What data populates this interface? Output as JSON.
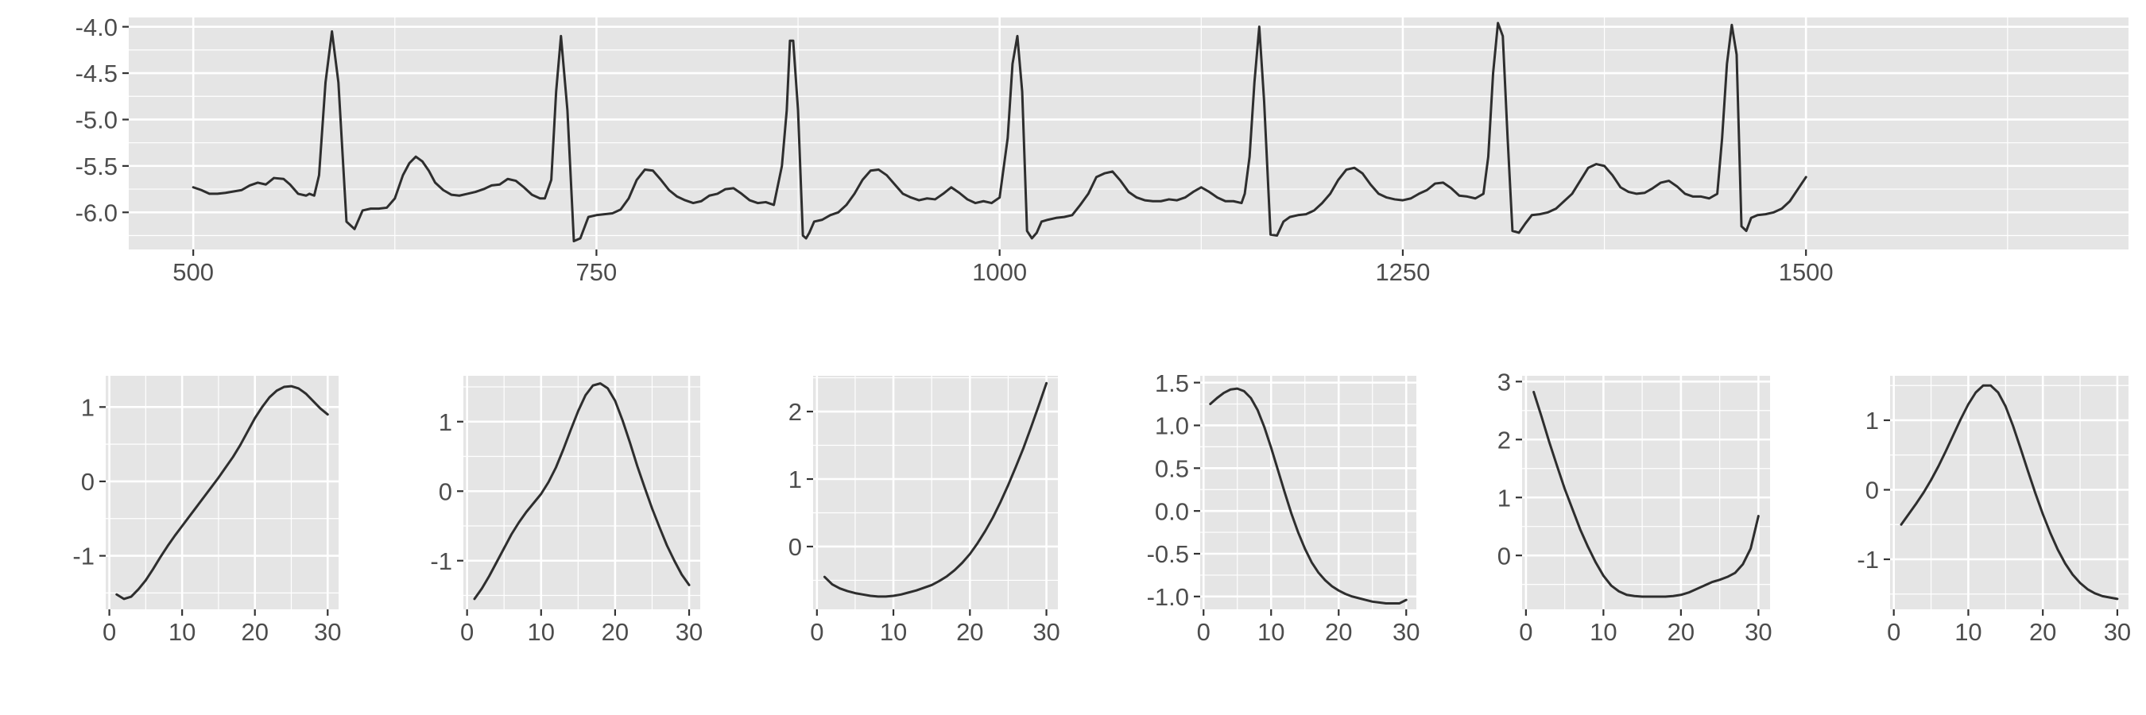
{
  "chart_data": [
    {
      "type": "line",
      "title": "",
      "xlabel": "",
      "ylabel": "",
      "xlim": [
        460,
        1700
      ],
      "ylim": [
        -6.4,
        -3.9
      ],
      "x_ticks": [
        500,
        750,
        1000,
        1250,
        1500
      ],
      "y_ticks": [
        -6.0,
        -5.5,
        -5.0,
        -4.5,
        -4.0
      ],
      "x_tick_labels": [
        "500",
        "750",
        "1000",
        "1250",
        "1500"
      ],
      "y_tick_labels": [
        "-6.0",
        "-5.5",
        "-5.0",
        "-4.5",
        "-4.0"
      ],
      "grid": true,
      "series": [
        {
          "x": [
            500,
            505,
            510,
            515,
            520,
            530,
            535,
            540,
            545,
            550,
            556,
            560,
            565,
            570,
            572,
            575,
            578,
            582,
            586,
            590,
            595,
            600,
            605,
            610,
            615,
            620,
            625,
            630,
            634,
            638,
            642,
            646,
            650,
            655,
            660,
            665,
            670,
            675,
            680,
            685,
            690,
            695,
            700,
            705,
            710,
            715,
            718,
            722,
            725,
            728,
            732,
            736,
            740,
            745,
            750,
            755,
            760,
            765,
            770,
            775,
            780,
            785,
            790,
            795,
            800,
            805,
            810,
            815,
            820,
            825,
            830,
            835,
            840,
            845,
            850,
            855,
            860,
            865,
            868,
            870,
            872,
            875,
            878,
            880,
            882,
            885,
            890,
            895,
            900,
            905,
            910,
            915,
            920,
            925,
            930,
            935,
            940,
            945,
            950,
            955,
            960,
            965,
            970,
            975,
            980,
            985,
            990,
            995,
            1000,
            1005,
            1008,
            1011,
            1014,
            1017,
            1020,
            1023,
            1026,
            1030,
            1035,
            1040,
            1045,
            1050,
            1055,
            1060,
            1065,
            1070,
            1075,
            1080,
            1085,
            1090,
            1095,
            1100,
            1105,
            1110,
            1115,
            1120,
            1125,
            1130,
            1135,
            1140,
            1145,
            1150,
            1152,
            1155,
            1158,
            1161,
            1164,
            1168,
            1172,
            1176,
            1180,
            1185,
            1190,
            1195,
            1200,
            1205,
            1210,
            1215,
            1220,
            1225,
            1230,
            1235,
            1240,
            1245,
            1250,
            1255,
            1260,
            1265,
            1270,
            1275,
            1280,
            1285,
            1290,
            1295,
            1300,
            1303,
            1306,
            1309,
            1312,
            1315,
            1318,
            1322,
            1326,
            1330,
            1335,
            1340,
            1345,
            1350,
            1355,
            1360,
            1365,
            1370,
            1375,
            1380,
            1385,
            1390,
            1395,
            1400,
            1405,
            1410,
            1415,
            1420,
            1425,
            1430,
            1435,
            1440,
            1445,
            1448,
            1451,
            1454,
            1457,
            1460,
            1463,
            1466,
            1470,
            1475,
            1480,
            1485,
            1490,
            1495,
            1500
          ],
          "y": [
            -5.73,
            -5.76,
            -5.8,
            -5.8,
            -5.79,
            -5.76,
            -5.71,
            -5.68,
            -5.7,
            -5.63,
            -5.64,
            -5.7,
            -5.8,
            -5.82,
            -5.8,
            -5.82,
            -5.6,
            -4.6,
            -4.05,
            -4.6,
            -6.1,
            -6.18,
            -5.98,
            -5.96,
            -5.96,
            -5.95,
            -5.85,
            -5.6,
            -5.47,
            -5.4,
            -5.45,
            -5.55,
            -5.68,
            -5.76,
            -5.81,
            -5.82,
            -5.8,
            -5.78,
            -5.75,
            -5.71,
            -5.7,
            -5.64,
            -5.66,
            -5.73,
            -5.81,
            -5.85,
            -5.85,
            -5.65,
            -4.7,
            -4.1,
            -4.9,
            -6.31,
            -6.28,
            -6.05,
            -6.03,
            -6.02,
            -6.01,
            -5.97,
            -5.85,
            -5.65,
            -5.54,
            -5.55,
            -5.65,
            -5.76,
            -5.83,
            -5.87,
            -5.9,
            -5.88,
            -5.82,
            -5.8,
            -5.75,
            -5.74,
            -5.8,
            -5.87,
            -5.9,
            -5.89,
            -5.92,
            -5.5,
            -4.9,
            -4.15,
            -4.15,
            -4.9,
            -6.25,
            -6.28,
            -6.22,
            -6.1,
            -6.08,
            -6.03,
            -6.0,
            -5.92,
            -5.8,
            -5.65,
            -5.55,
            -5.54,
            -5.6,
            -5.7,
            -5.8,
            -5.84,
            -5.87,
            -5.85,
            -5.86,
            -5.8,
            -5.73,
            -5.79,
            -5.86,
            -5.9,
            -5.88,
            -5.9,
            -5.84,
            -5.2,
            -4.4,
            -4.1,
            -4.7,
            -6.2,
            -6.28,
            -6.22,
            -6.1,
            -6.08,
            -6.06,
            -6.05,
            -6.03,
            -5.92,
            -5.8,
            -5.62,
            -5.58,
            -5.56,
            -5.66,
            -5.78,
            -5.84,
            -5.87,
            -5.88,
            -5.88,
            -5.86,
            -5.87,
            -5.84,
            -5.78,
            -5.73,
            -5.78,
            -5.84,
            -5.88,
            -5.88,
            -5.9,
            -5.8,
            -5.4,
            -4.6,
            -4.0,
            -4.8,
            -6.24,
            -6.25,
            -6.1,
            -6.05,
            -6.03,
            -6.02,
            -5.98,
            -5.9,
            -5.8,
            -5.65,
            -5.54,
            -5.52,
            -5.58,
            -5.7,
            -5.8,
            -5.84,
            -5.86,
            -5.87,
            -5.85,
            -5.8,
            -5.76,
            -5.69,
            -5.68,
            -5.74,
            -5.82,
            -5.83,
            -5.85,
            -5.8,
            -5.4,
            -4.5,
            -3.96,
            -4.1,
            -5.2,
            -6.2,
            -6.22,
            -6.12,
            -6.03,
            -6.02,
            -6.0,
            -5.96,
            -5.88,
            -5.8,
            -5.66,
            -5.52,
            -5.48,
            -5.5,
            -5.6,
            -5.73,
            -5.78,
            -5.8,
            -5.79,
            -5.74,
            -5.68,
            -5.66,
            -5.72,
            -5.8,
            -5.83,
            -5.83,
            -5.85,
            -5.8,
            -5.2,
            -4.4,
            -3.98,
            -4.3,
            -6.15,
            -6.2,
            -6.06,
            -6.03,
            -6.02,
            -6.0,
            -5.96,
            -5.88,
            -5.75,
            -5.62
          ]
        }
      ]
    },
    {
      "type": "line",
      "title": "",
      "xlabel": "",
      "ylabel": "",
      "xlim": [
        -0.5,
        31.5
      ],
      "ylim": [
        -1.72,
        1.42
      ],
      "x_ticks": [
        0,
        10,
        20,
        30
      ],
      "x_tick_labels": [
        "0",
        "10",
        "20",
        "30"
      ],
      "y_ticks": [
        -1,
        0,
        1
      ],
      "y_tick_labels": [
        "-1",
        "0",
        "1"
      ],
      "grid": true,
      "series": [
        {
          "x": [
            1,
            2,
            3,
            4,
            5,
            6,
            7,
            8,
            9,
            10,
            11,
            12,
            13,
            14,
            15,
            16,
            17,
            18,
            19,
            20,
            21,
            22,
            23,
            24,
            25,
            26,
            27,
            28,
            29,
            30
          ],
          "y": [
            -1.52,
            -1.58,
            -1.55,
            -1.45,
            -1.33,
            -1.18,
            -1.02,
            -0.87,
            -0.73,
            -0.6,
            -0.47,
            -0.34,
            -0.21,
            -0.08,
            0.05,
            0.19,
            0.33,
            0.49,
            0.67,
            0.85,
            1.0,
            1.13,
            1.22,
            1.27,
            1.28,
            1.25,
            1.18,
            1.08,
            0.98,
            0.9
          ]
        }
      ]
    },
    {
      "type": "line",
      "title": "",
      "xlabel": "",
      "ylabel": "",
      "xlim": [
        -0.5,
        31.5
      ],
      "ylim": [
        -1.7,
        1.66
      ],
      "x_ticks": [
        0,
        10,
        20,
        30
      ],
      "x_tick_labels": [
        "0",
        "10",
        "20",
        "30"
      ],
      "y_ticks": [
        -1,
        0,
        1
      ],
      "y_tick_labels": [
        "-1",
        "0",
        "1"
      ],
      "grid": true,
      "series": [
        {
          "x": [
            1,
            2,
            3,
            4,
            5,
            6,
            7,
            8,
            9,
            10,
            11,
            12,
            13,
            14,
            15,
            16,
            17,
            18,
            19,
            20,
            21,
            22,
            23,
            24,
            25,
            26,
            27,
            28,
            29,
            30
          ],
          "y": [
            -1.55,
            -1.4,
            -1.22,
            -1.02,
            -0.82,
            -0.62,
            -0.45,
            -0.3,
            -0.17,
            -0.04,
            0.13,
            0.34,
            0.6,
            0.88,
            1.15,
            1.38,
            1.52,
            1.55,
            1.48,
            1.3,
            1.02,
            0.7,
            0.36,
            0.05,
            -0.25,
            -0.52,
            -0.78,
            -1.0,
            -1.2,
            -1.35
          ]
        }
      ]
    },
    {
      "type": "line",
      "title": "",
      "xlabel": "",
      "ylabel": "",
      "xlim": [
        -0.5,
        31.5
      ],
      "ylim": [
        -0.93,
        2.53
      ],
      "x_ticks": [
        0,
        10,
        20,
        30
      ],
      "x_tick_labels": [
        "0",
        "10",
        "20",
        "30"
      ],
      "y_ticks": [
        0,
        1,
        2
      ],
      "y_tick_labels": [
        "0",
        "1",
        "2"
      ],
      "grid": true,
      "series": [
        {
          "x": [
            1,
            2,
            3,
            4,
            5,
            6,
            7,
            8,
            9,
            10,
            11,
            12,
            13,
            14,
            15,
            16,
            17,
            18,
            19,
            20,
            21,
            22,
            23,
            24,
            25,
            26,
            27,
            28,
            29,
            30
          ],
          "y": [
            -0.45,
            -0.56,
            -0.62,
            -0.66,
            -0.69,
            -0.71,
            -0.73,
            -0.74,
            -0.74,
            -0.73,
            -0.71,
            -0.68,
            -0.65,
            -0.61,
            -0.57,
            -0.51,
            -0.44,
            -0.35,
            -0.24,
            -0.11,
            0.05,
            0.23,
            0.43,
            0.66,
            0.91,
            1.18,
            1.46,
            1.77,
            2.09,
            2.42
          ]
        }
      ]
    },
    {
      "type": "line",
      "title": "",
      "xlabel": "",
      "ylabel": "",
      "xlim": [
        -0.5,
        31.5
      ],
      "ylim": [
        -1.15,
        1.58
      ],
      "x_ticks": [
        0,
        10,
        20,
        30
      ],
      "x_tick_labels": [
        "0",
        "10",
        "20",
        "30"
      ],
      "y_ticks": [
        -1.0,
        -0.5,
        0.0,
        0.5,
        1.0,
        1.5
      ],
      "y_tick_labels": [
        "-1.0",
        "-0.5",
        "0.0",
        "0.5",
        "1.0",
        "1.5"
      ],
      "grid": true,
      "series": [
        {
          "x": [
            1,
            2,
            3,
            4,
            5,
            6,
            7,
            8,
            9,
            10,
            11,
            12,
            13,
            14,
            15,
            16,
            17,
            18,
            19,
            20,
            21,
            22,
            23,
            24,
            25,
            26,
            27,
            28,
            29,
            30
          ],
          "y": [
            1.25,
            1.32,
            1.38,
            1.42,
            1.43,
            1.4,
            1.32,
            1.18,
            0.98,
            0.74,
            0.48,
            0.22,
            -0.03,
            -0.25,
            -0.44,
            -0.6,
            -0.72,
            -0.81,
            -0.88,
            -0.93,
            -0.97,
            -1.0,
            -1.02,
            -1.04,
            -1.06,
            -1.07,
            -1.08,
            -1.08,
            -1.08,
            -1.04
          ]
        }
      ]
    },
    {
      "type": "line",
      "title": "",
      "xlabel": "",
      "ylabel": "",
      "xlim": [
        -0.5,
        31.5
      ],
      "ylim": [
        -0.93,
        3.1
      ],
      "x_ticks": [
        0,
        10,
        20,
        30
      ],
      "x_tick_labels": [
        "0",
        "10",
        "20",
        "30"
      ],
      "y_ticks": [
        0,
        1,
        2,
        3
      ],
      "y_tick_labels": [
        "0",
        "1",
        "2",
        "3"
      ],
      "grid": true,
      "series": [
        {
          "x": [
            1,
            2,
            3,
            4,
            5,
            6,
            7,
            8,
            9,
            10,
            11,
            12,
            13,
            14,
            15,
            16,
            17,
            18,
            19,
            20,
            21,
            22,
            23,
            24,
            25,
            26,
            27,
            28,
            29,
            30
          ],
          "y": [
            2.82,
            2.4,
            1.96,
            1.55,
            1.15,
            0.8,
            0.45,
            0.15,
            -0.12,
            -0.35,
            -0.52,
            -0.62,
            -0.68,
            -0.7,
            -0.71,
            -0.71,
            -0.71,
            -0.71,
            -0.7,
            -0.68,
            -0.64,
            -0.58,
            -0.52,
            -0.46,
            -0.42,
            -0.37,
            -0.3,
            -0.15,
            0.12,
            0.68
          ]
        }
      ]
    },
    {
      "type": "line",
      "title": "",
      "xlabel": "",
      "ylabel": "",
      "xlim": [
        -0.5,
        31.5
      ],
      "ylim": [
        -1.72,
        1.64
      ],
      "x_ticks": [
        0,
        10,
        20,
        30
      ],
      "x_tick_labels": [
        "0",
        "10",
        "20",
        "30"
      ],
      "y_ticks": [
        -1,
        0,
        1
      ],
      "y_tick_labels": [
        "-1",
        "0",
        "1"
      ],
      "grid": true,
      "series": [
        {
          "x": [
            1,
            2,
            3,
            4,
            5,
            6,
            7,
            8,
            9,
            10,
            11,
            12,
            13,
            14,
            15,
            16,
            17,
            18,
            19,
            20,
            21,
            22,
            23,
            24,
            25,
            26,
            27,
            28,
            29,
            30
          ],
          "y": [
            -0.5,
            -0.35,
            -0.2,
            -0.04,
            0.14,
            0.34,
            0.56,
            0.79,
            1.02,
            1.23,
            1.4,
            1.5,
            1.5,
            1.4,
            1.2,
            0.92,
            0.6,
            0.27,
            -0.05,
            -0.35,
            -0.62,
            -0.86,
            -1.06,
            -1.22,
            -1.34,
            -1.43,
            -1.49,
            -1.53,
            -1.55,
            -1.57
          ]
        }
      ]
    }
  ]
}
